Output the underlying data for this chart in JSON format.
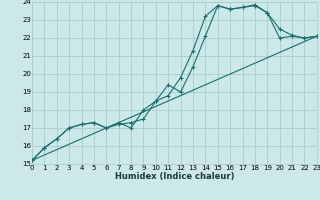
{
  "xlabel": "Humidex (Indice chaleur)",
  "bg_color": "#cce8e8",
  "grid_color": "#aacccc",
  "line_color": "#1a6e6e",
  "xlim": [
    0,
    23
  ],
  "ylim": [
    15,
    24
  ],
  "xticks": [
    0,
    1,
    2,
    3,
    4,
    5,
    6,
    7,
    8,
    9,
    10,
    11,
    12,
    13,
    14,
    15,
    16,
    17,
    18,
    19,
    20,
    21,
    22,
    23
  ],
  "yticks": [
    15,
    16,
    17,
    18,
    19,
    20,
    21,
    22,
    23,
    24
  ],
  "line1_x": [
    0,
    1,
    2,
    3,
    4,
    5,
    6,
    7,
    8,
    9,
    10,
    11,
    12,
    13,
    14,
    15,
    16,
    17,
    18,
    19,
    20,
    21,
    22,
    23
  ],
  "line1_y": [
    15.2,
    15.9,
    16.4,
    17.0,
    17.2,
    17.3,
    17.0,
    17.3,
    17.0,
    18.0,
    18.5,
    19.4,
    19.0,
    20.4,
    22.1,
    23.8,
    23.6,
    23.7,
    23.8,
    23.4,
    22.0,
    22.1,
    22.0,
    22.1
  ],
  "line2_x": [
    0,
    1,
    2,
    3,
    4,
    5,
    6,
    7,
    8,
    9,
    10,
    11,
    12,
    13,
    14,
    15,
    16,
    17,
    18,
    19,
    20,
    21,
    22,
    23
  ],
  "line2_y": [
    15.2,
    15.9,
    16.4,
    17.0,
    17.2,
    17.3,
    17.0,
    17.2,
    17.3,
    17.5,
    18.5,
    18.8,
    19.8,
    21.3,
    23.2,
    23.8,
    23.6,
    23.7,
    23.85,
    23.4,
    22.5,
    22.15,
    22.0,
    22.1
  ],
  "line3_x": [
    0,
    23
  ],
  "line3_y": [
    15.2,
    22.1
  ]
}
